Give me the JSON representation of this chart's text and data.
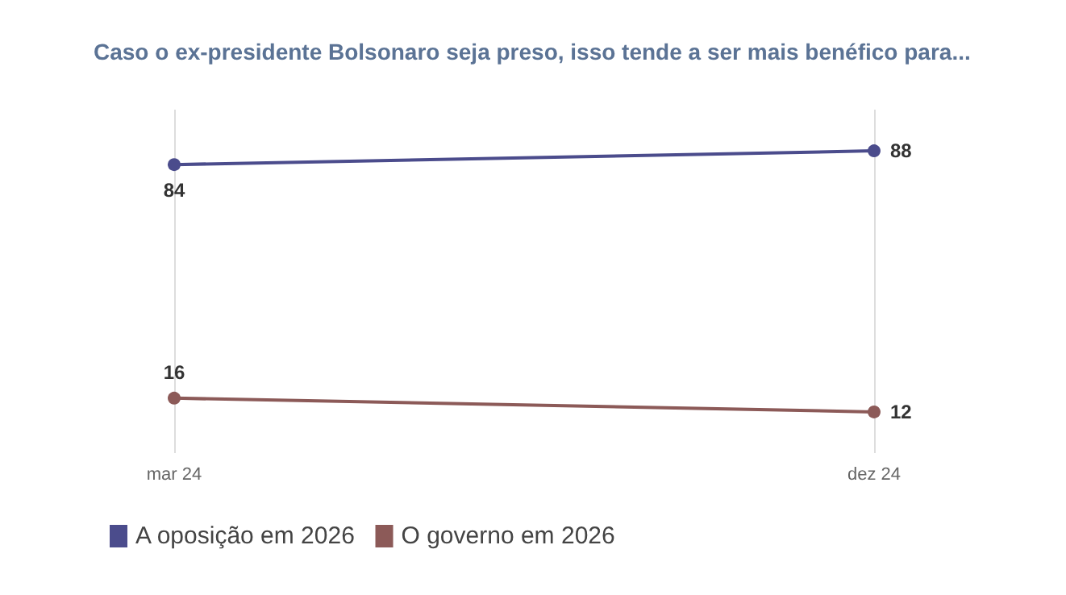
{
  "chart_data": {
    "type": "line",
    "title": "Caso o ex-presidente Bolsonaro seja preso, isso tende a ser mais benéfico para...",
    "categories": [
      "mar 24",
      "dez 24"
    ],
    "series": [
      {
        "name": "A oposição em 2026",
        "color": "#4b4c8c",
        "values": [
          84,
          88
        ]
      },
      {
        "name": "O governo em 2026",
        "color": "#8c5a58",
        "values": [
          16,
          12
        ]
      }
    ],
    "ylim": [
      0,
      100
    ],
    "tick_labels": "x",
    "data_labels": true,
    "grid": "x",
    "legend": "bottom left",
    "marker": "circle",
    "line_style": "solid"
  }
}
